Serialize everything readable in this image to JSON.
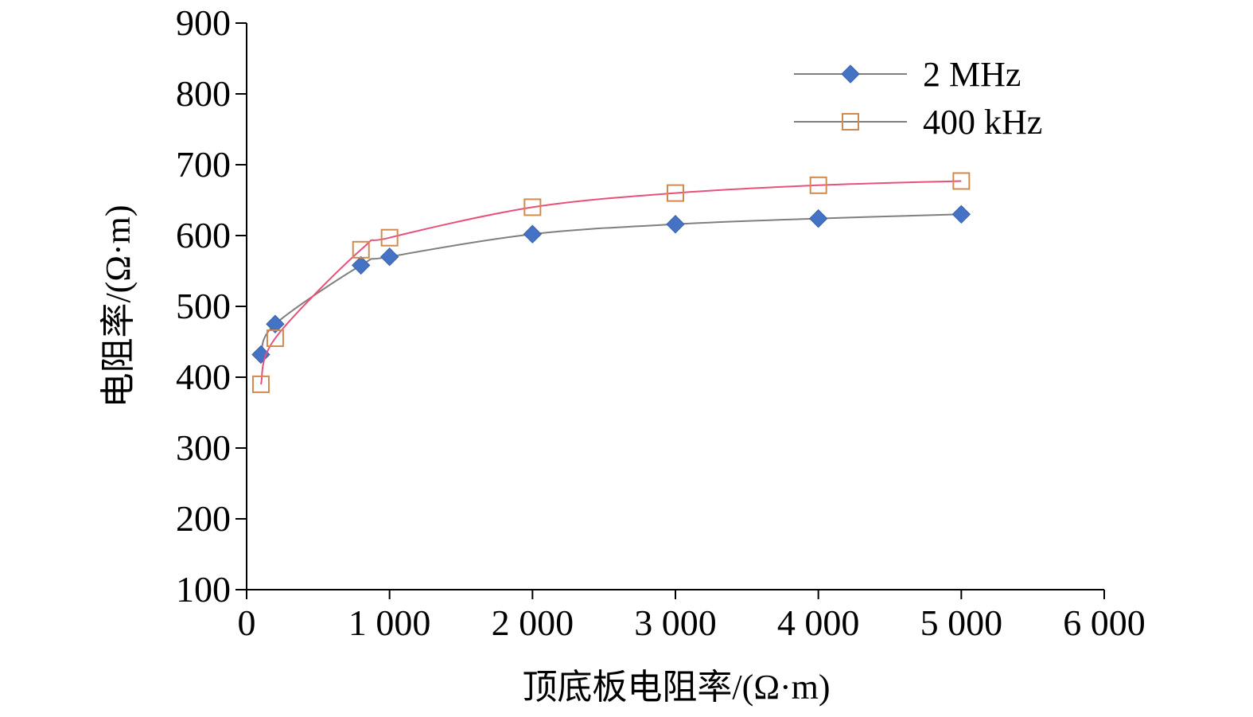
{
  "chart_data": {
    "type": "line",
    "title": "",
    "xlabel": "顶底板电阻率/(Ω·m)",
    "ylabel": "电阻率/(Ω·m)",
    "xlim": [
      0,
      6000
    ],
    "ylim": [
      100,
      900
    ],
    "x_ticks": [
      0,
      1000,
      2000,
      3000,
      4000,
      5000,
      6000
    ],
    "x_tick_labels": [
      "0",
      "1 000",
      "2 000",
      "3 000",
      "4 000",
      "5 000",
      "6 000"
    ],
    "y_ticks": [
      100,
      200,
      300,
      400,
      500,
      600,
      700,
      800,
      900
    ],
    "y_tick_labels": [
      "100",
      "200",
      "300",
      "400",
      "500",
      "600",
      "700",
      "800",
      "900"
    ],
    "grid": false,
    "legend_position": "top-right",
    "series": [
      {
        "name": "2 MHz",
        "marker": "diamond",
        "line_color": "#7f7f7f",
        "marker_color": "#4472c4",
        "x": [
          100,
          200,
          800,
          1000,
          2000,
          3000,
          4000,
          5000
        ],
        "y": [
          432,
          475,
          558,
          570,
          602,
          616,
          624,
          630
        ]
      },
      {
        "name": "400 kHz",
        "marker": "square-open",
        "line_color": "#e8507a",
        "marker_color": "#d08a4f",
        "x": [
          100,
          200,
          800,
          1000,
          2000,
          3000,
          4000,
          5000
        ],
        "y": [
          390,
          455,
          580,
          597,
          640,
          660,
          671,
          677
        ]
      }
    ]
  }
}
